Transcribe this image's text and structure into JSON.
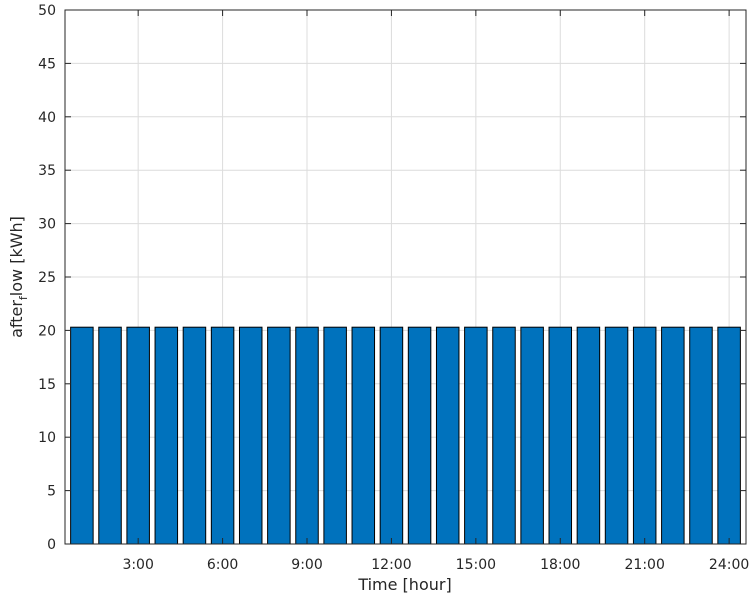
{
  "chart_data": {
    "type": "bar",
    "title": "",
    "xlabel": "Time [hour]",
    "ylabel_main": "after",
    "ylabel_sub": "f",
    "ylabel_rest": "low [kWh]",
    "ylim": [
      0,
      50
    ],
    "yticks": [
      "0",
      "5",
      "10",
      "15",
      "20",
      "25",
      "30",
      "35",
      "40",
      "45",
      "50"
    ],
    "xlim": [
      0.4,
      24.6
    ],
    "xticks": [
      {
        "value": 3,
        "label": "3:00"
      },
      {
        "value": 6,
        "label": "6:00"
      },
      {
        "value": 9,
        "label": "9:00"
      },
      {
        "value": 12,
        "label": "12:00"
      },
      {
        "value": 15,
        "label": "15:00"
      },
      {
        "value": 18,
        "label": "18:00"
      },
      {
        "value": 21,
        "label": "21:00"
      },
      {
        "value": 24,
        "label": "24:00"
      }
    ],
    "grid": true,
    "bar_color": "#0072BD",
    "categories": [
      1,
      2,
      3,
      4,
      5,
      6,
      7,
      8,
      9,
      10,
      11,
      12,
      13,
      14,
      15,
      16,
      17,
      18,
      19,
      20,
      21,
      22,
      23,
      24
    ],
    "values": [
      20.3,
      20.3,
      20.3,
      20.3,
      20.3,
      20.3,
      20.3,
      20.3,
      20.3,
      20.3,
      20.3,
      20.3,
      20.3,
      20.3,
      20.3,
      20.3,
      20.3,
      20.3,
      20.3,
      20.3,
      20.3,
      20.3,
      20.3,
      20.3
    ]
  }
}
